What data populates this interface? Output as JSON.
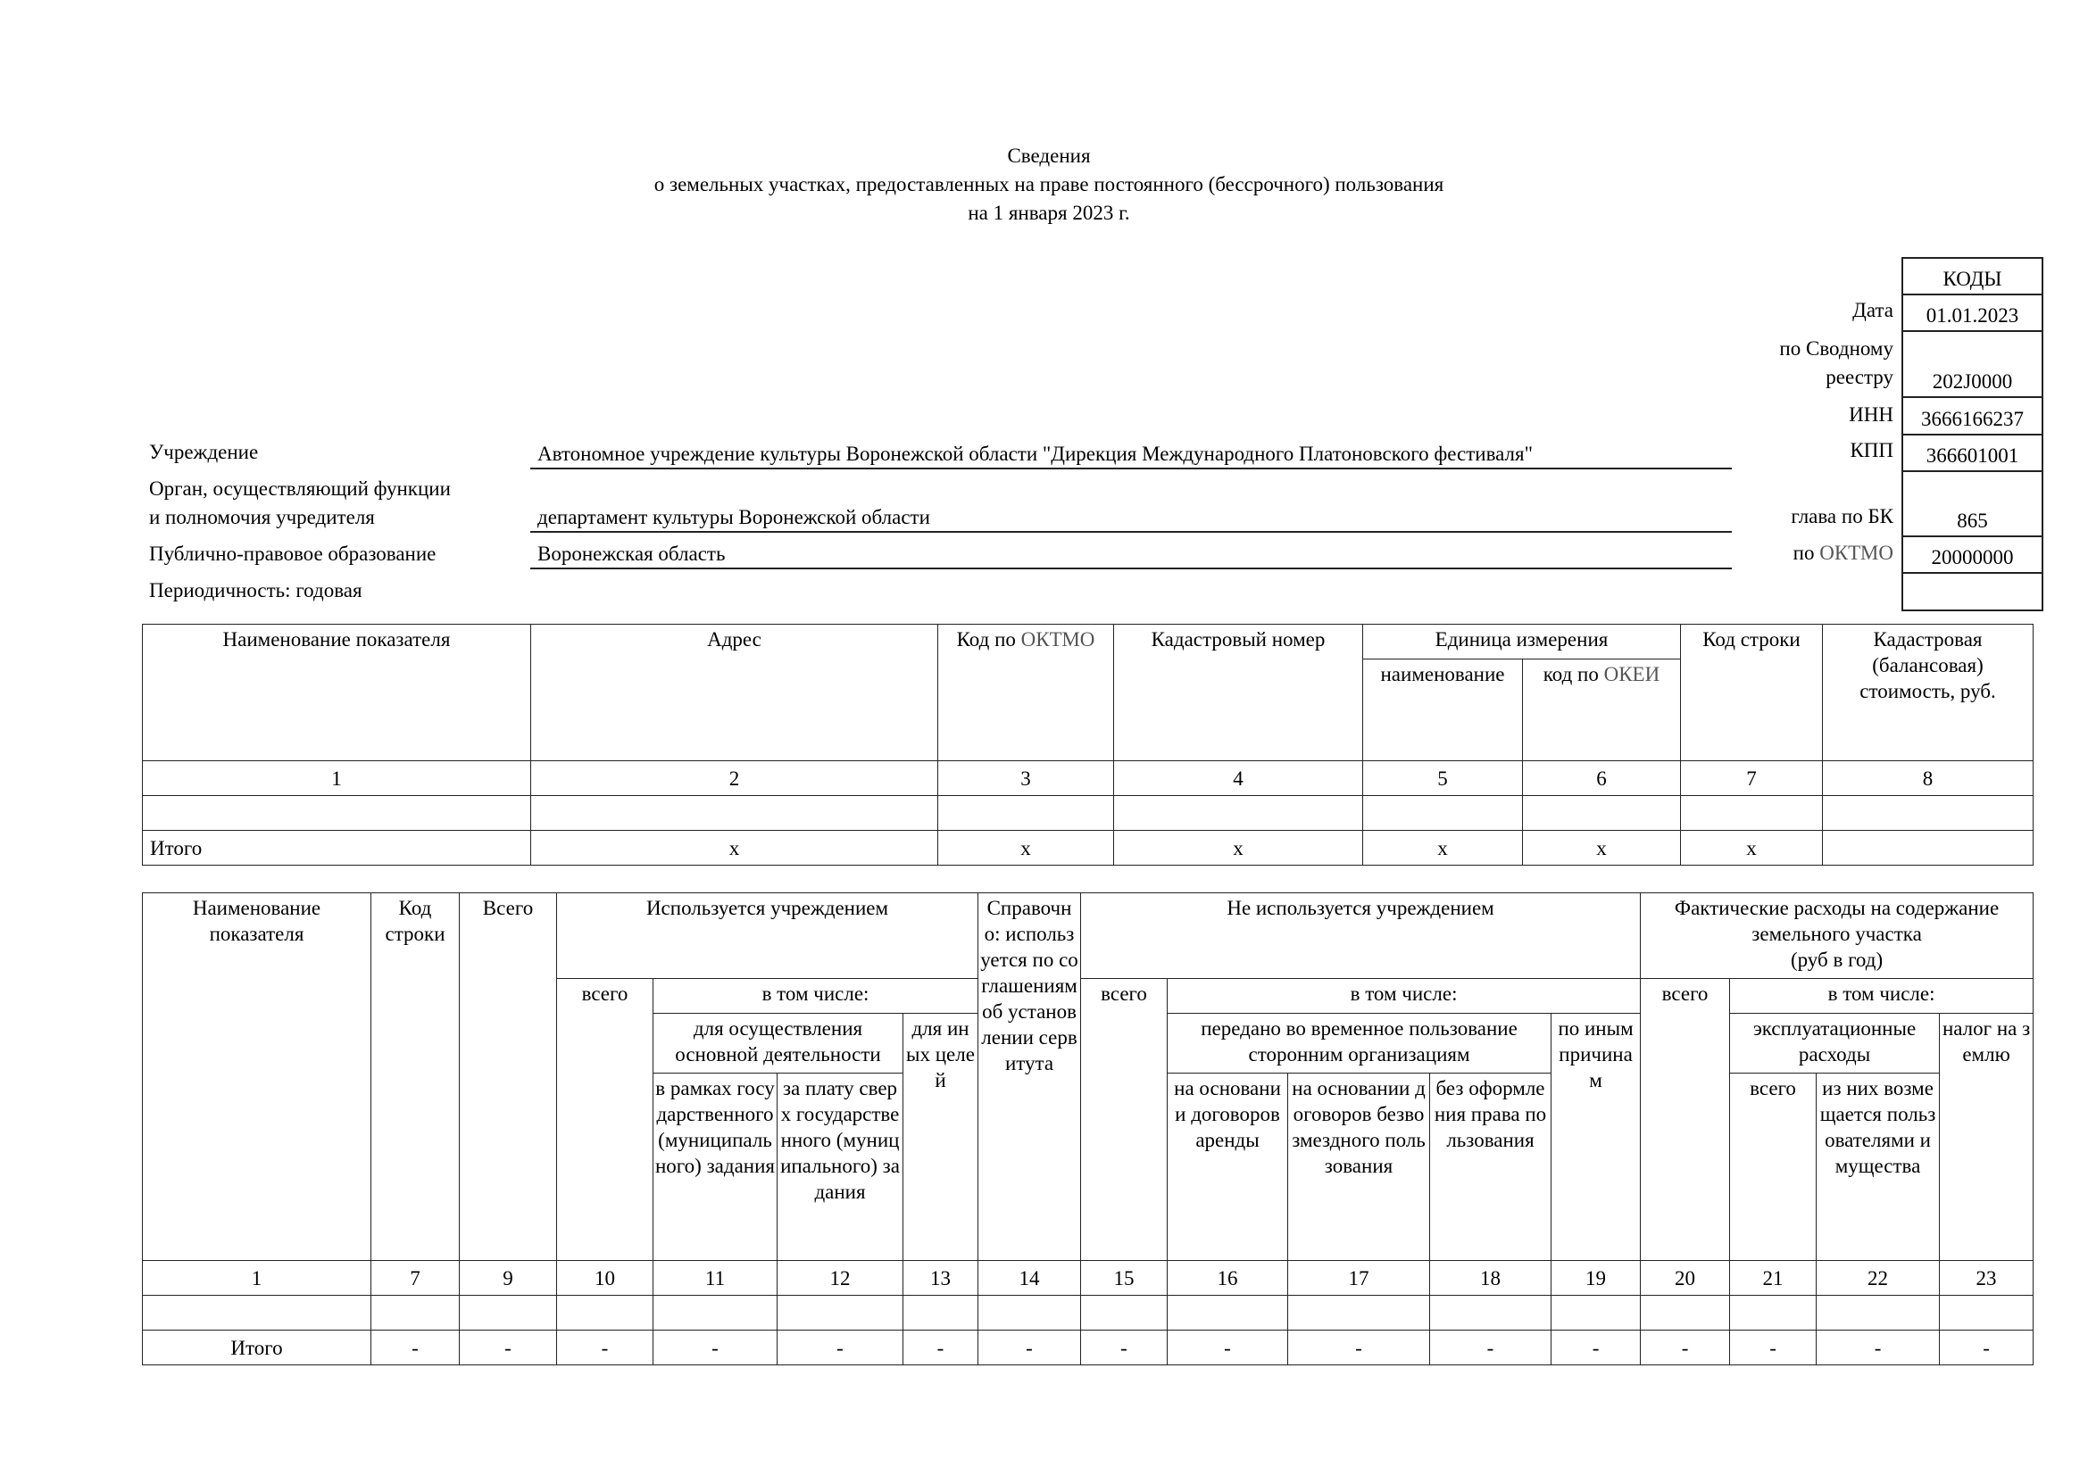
{
  "header": {
    "title": "Сведения",
    "subtitle": "о земельных участках, предоставленных на праве постоянного (бессрочного) пользования",
    "date_line": "на 1 января 2023 г."
  },
  "codes": {
    "title": "КОДЫ",
    "rows": [
      {
        "label": "Дата",
        "value": "01.01.2023"
      },
      {
        "label": "по Сводному реестру",
        "label_line1": "по Сводному",
        "label_line2": "реестру",
        "value": "202J0000"
      },
      {
        "label": "ИНН",
        "value": "3666166237"
      },
      {
        "label": "КПП",
        "value": "366601001"
      },
      {
        "label": "глава по БК",
        "value": "865"
      },
      {
        "label_prefix": "по ",
        "label_code": "ОКТМО",
        "value": "20000000"
      },
      {
        "value": ""
      }
    ]
  },
  "info": {
    "institution_label": "Учреждение",
    "institution_value": "Автономное учреждение культуры Воронежской области \"Дирекция Международного Платоновского фестиваля\"",
    "founder_label_line1": "Орган, осуществляющий функции",
    "founder_label_line2": "и полномочия учредителя",
    "founder_value": "департамент культуры Воронежской области",
    "public_label": "Публично-правовое образование",
    "public_value": "Воронежская область",
    "periodicity": "Периодичность: годовая"
  },
  "table1": {
    "headers": {
      "name": "Наименование показателя",
      "address": "Адрес",
      "oktmo_prefix": "Код по ",
      "oktmo_code": "ОКТМО",
      "cadastral": "Кадастровый номер",
      "unit": "Единица измерения",
      "unit_name": "наименование",
      "okei_prefix": "код по ",
      "okei_code": "ОКЕИ",
      "row_code": "Код строки",
      "value": "Кадастровая (балансовая) стоимость, руб."
    },
    "column_numbers": [
      "1",
      "2",
      "3",
      "4",
      "5",
      "6",
      "7",
      "8"
    ],
    "rows": [
      [
        "",
        "",
        "",
        "",
        "",
        "",
        "",
        ""
      ],
      [
        "Итого",
        "x",
        "x",
        "x",
        "x",
        "x",
        "x",
        ""
      ]
    ]
  },
  "table2": {
    "headers": {
      "name": "Наименование показателя",
      "row_code": "Код строки",
      "total": "Всего",
      "used": "Используется учреждением",
      "reference": "Справочно: используется по соглашениям об установлении сервитута",
      "not_used": "Не используется учреждением",
      "expenses": "Фактические расходы на содержание земельного участка",
      "expenses_unit": "(руб в год)",
      "used_total": "всего",
      "used_incl": "в том числе:",
      "not_used_total": "всего",
      "not_used_incl": "в том числе:",
      "exp_total": "всего",
      "exp_incl": "в том числе:",
      "main_activity": "для осуществления основной деятельности",
      "other_purposes": "для иных целей",
      "transferred": "передано во временное пользование сторонним организациям",
      "other_reasons": "по иным причинам",
      "operating": "эксплуатационные расходы",
      "land_tax": "налог на землю",
      "state_task": "в рамках государственного (муниципального) задания",
      "paid_over": "за плату сверх государственного (муниципального) задания",
      "lease": "на основании договоров аренды",
      "free_use": "на основании договоров безвозмездного пользования",
      "no_rights": "без оформления права пользования",
      "op_total": "всего",
      "reimbursed": "из них возмещается пользователями имущества"
    },
    "column_numbers": [
      "1",
      "7",
      "9",
      "10",
      "11",
      "12",
      "13",
      "14",
      "15",
      "16",
      "17",
      "18",
      "19",
      "20",
      "21",
      "22",
      "23"
    ],
    "rows": [
      [
        "",
        "",
        "",
        "",
        "",
        "",
        "",
        "",
        "",
        "",
        "",
        "",
        "",
        "",
        "",
        "",
        ""
      ],
      [
        "Итого",
        "-",
        "-",
        "-",
        "-",
        "-",
        "-",
        "-",
        "-",
        "-",
        "-",
        "-",
        "-",
        "-",
        "-",
        "-",
        "-"
      ]
    ]
  }
}
